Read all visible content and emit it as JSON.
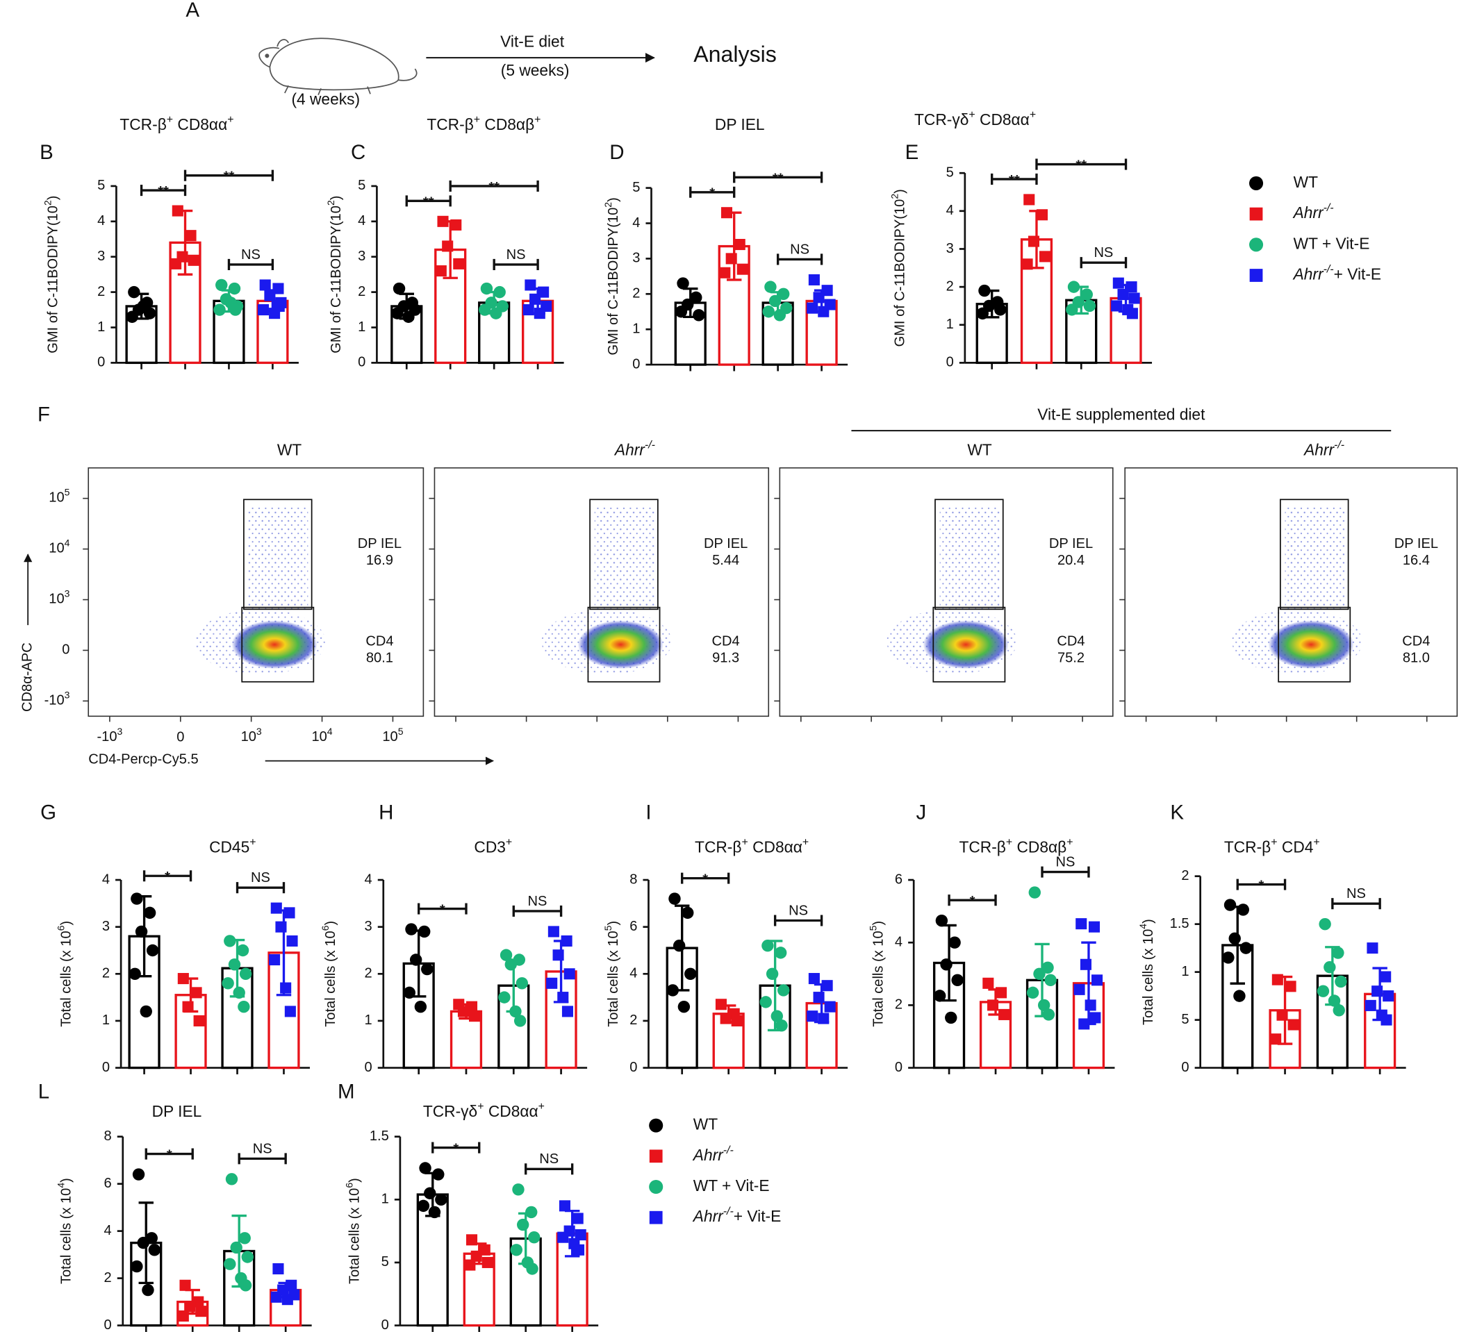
{
  "schematic": {
    "letter": "A",
    "age": "(4 weeks)",
    "diet": "Vit-E diet",
    "duration": "(5 weeks)",
    "outcome": "Analysis"
  },
  "legend": {
    "groups": [
      {
        "label": "WT",
        "color": "#000000",
        "bar_color": "#000000",
        "marker": "circle"
      },
      {
        "label": [
          {
            "t": "Ahrr",
            "i": true
          },
          {
            "t": "-/-",
            "sup": true,
            "i": true
          }
        ],
        "color": "#e8141b",
        "bar_color": "#e8141b",
        "marker": "square"
      },
      {
        "label": "WT + Vit-E",
        "color": "#1bb57a",
        "bar_color": "#000000",
        "marker": "circle"
      },
      {
        "label": [
          {
            "t": "Ahrr",
            "i": true
          },
          {
            "t": "-/-",
            "sup": true,
            "i": true
          },
          {
            "t": "+ Vit-E"
          }
        ],
        "color": "#1a1aee",
        "bar_color": "#e8141b",
        "marker": "square"
      }
    ]
  },
  "flow_group_label": "Vit-E supplemented diet",
  "chart_data": [
    {
      "type": "bar",
      "letter": "B",
      "title": [
        {
          "t": "TCR-β"
        },
        {
          "t": "+",
          "sup": true
        },
        {
          "t": " CD8αα"
        },
        {
          "t": "+",
          "sup": true
        }
      ],
      "ylabel": [
        {
          "t": "GMI of C-11BODIPY(10"
        },
        {
          "t": "2",
          "sup": true
        },
        {
          "t": ")"
        }
      ],
      "ylim": [
        0,
        5
      ],
      "yticks": [
        0,
        1,
        2,
        3,
        4,
        5
      ],
      "means": [
        1.6,
        3.4,
        1.75,
        1.75
      ],
      "errors": [
        0.35,
        0.9,
        0.3,
        0.3
      ],
      "points": [
        [
          2.0,
          1.7,
          1.5,
          1.4,
          1.3,
          1.6
        ],
        [
          4.3,
          3.6,
          3.0,
          2.9,
          2.8
        ],
        [
          2.2,
          2.1,
          1.8,
          1.6,
          1.5,
          1.7,
          1.5
        ],
        [
          2.2,
          2.1,
          1.9,
          1.7,
          1.5,
          1.4,
          1.6
        ]
      ],
      "significance": [
        {
          "label": "**",
          "from": 0,
          "to": 1
        },
        {
          "label": "NS",
          "from": 2,
          "to": 3
        },
        {
          "label": "**",
          "from": 1,
          "to": 3
        }
      ]
    },
    {
      "type": "bar",
      "letter": "C",
      "title": [
        {
          "t": "TCR-β"
        },
        {
          "t": "+",
          "sup": true
        },
        {
          "t": " CD8αβ"
        },
        {
          "t": "+",
          "sup": true
        }
      ],
      "ylabel": [
        {
          "t": "GMI of C-11BODIPY(10"
        },
        {
          "t": "2",
          "sup": true
        },
        {
          "t": ")"
        }
      ],
      "ylim": [
        0,
        5
      ],
      "yticks": [
        0,
        1,
        2,
        3,
        4,
        5
      ],
      "means": [
        1.6,
        3.2,
        1.7,
        1.75
      ],
      "errors": [
        0.35,
        0.8,
        0.3,
        0.35
      ],
      "points": [
        [
          2.1,
          1.7,
          1.6,
          1.5,
          1.4,
          1.3
        ],
        [
          4.0,
          3.9,
          3.3,
          2.8,
          2.6
        ],
        [
          2.1,
          2.0,
          1.7,
          1.6,
          1.5,
          1.4
        ],
        [
          2.2,
          2.0,
          1.8,
          1.6,
          1.5,
          1.4
        ]
      ],
      "significance": [
        {
          "label": "**",
          "from": 0,
          "to": 1
        },
        {
          "label": "NS",
          "from": 2,
          "to": 3
        },
        {
          "label": "**",
          "from": 1,
          "to": 3
        }
      ]
    },
    {
      "type": "bar",
      "letter": "D",
      "title": "DP IEL",
      "ylabel": [
        {
          "t": "GMI of C-11BODIPY(10"
        },
        {
          "t": "2",
          "sup": true
        },
        {
          "t": ")"
        }
      ],
      "ylim": [
        0,
        5
      ],
      "yticks": [
        0,
        1,
        2,
        3,
        4,
        5
      ],
      "means": [
        1.75,
        3.35,
        1.75,
        1.8
      ],
      "errors": [
        0.4,
        0.95,
        0.3,
        0.3
      ],
      "points": [
        [
          2.3,
          1.9,
          1.7,
          1.4,
          1.5
        ],
        [
          4.3,
          3.4,
          3.0,
          2.7,
          2.6
        ],
        [
          2.2,
          2.0,
          1.8,
          1.6,
          1.5,
          1.4
        ],
        [
          2.4,
          2.1,
          1.9,
          1.7,
          1.6,
          1.5
        ]
      ],
      "significance": [
        {
          "label": "*",
          "from": 0,
          "to": 1
        },
        {
          "label": "NS",
          "from": 2,
          "to": 3
        },
        {
          "label": "**",
          "from": 1,
          "to": 3
        }
      ]
    },
    {
      "type": "bar",
      "letter": "E",
      "title": [
        {
          "t": "TCR-γδ"
        },
        {
          "t": "+",
          "sup": true
        },
        {
          "t": " CD8αα"
        },
        {
          "t": "+",
          "sup": true
        }
      ],
      "ylabel": [
        {
          "t": "GMI of C-11BODIPY(10"
        },
        {
          "t": "2",
          "sup": true
        },
        {
          "t": ")"
        }
      ],
      "ylim": [
        0,
        5
      ],
      "yticks": [
        0,
        1,
        2,
        3,
        4,
        5
      ],
      "means": [
        1.55,
        3.25,
        1.65,
        1.7
      ],
      "errors": [
        0.35,
        0.75,
        0.35,
        0.35
      ],
      "points": [
        [
          1.9,
          1.6,
          1.5,
          1.4,
          1.3
        ],
        [
          4.3,
          3.9,
          3.2,
          2.8,
          2.6
        ],
        [
          2.0,
          1.8,
          1.6,
          1.5,
          1.4
        ],
        [
          2.1,
          2.0,
          1.8,
          1.7,
          1.5,
          1.4,
          1.3
        ]
      ],
      "significance": [
        {
          "label": "**",
          "from": 0,
          "to": 1
        },
        {
          "label": "NS",
          "from": 2,
          "to": 3
        },
        {
          "label": "**",
          "from": 1,
          "to": 3
        }
      ]
    },
    {
      "type": "bar",
      "letter": "G",
      "title": [
        {
          "t": "CD45"
        },
        {
          "t": "+",
          "sup": true
        }
      ],
      "ylabel": [
        {
          "t": "Total cells (x 10"
        },
        {
          "t": "6",
          "sup": true
        },
        {
          "t": ")"
        }
      ],
      "ylim": [
        0,
        4
      ],
      "yticks": [
        0,
        1,
        2,
        3,
        4
      ],
      "means": [
        2.8,
        1.55,
        2.12,
        2.45
      ],
      "errors": [
        0.85,
        0.35,
        0.6,
        0.9
      ],
      "points": [
        [
          3.6,
          3.3,
          2.9,
          2.5,
          2.0,
          1.2
        ],
        [
          1.9,
          1.6,
          1.3,
          1.0
        ],
        [
          2.7,
          2.5,
          2.2,
          2.0,
          1.8,
          1.6,
          1.3
        ],
        [
          3.4,
          3.3,
          3.0,
          2.7,
          2.3,
          1.7,
          1.2
        ]
      ],
      "significance": [
        {
          "label": "*",
          "from": 0,
          "to": 1
        },
        {
          "label": "NS",
          "from": 2,
          "to": 3
        }
      ]
    },
    {
      "type": "bar",
      "letter": "H",
      "title": [
        {
          "t": "CD3"
        },
        {
          "t": "+",
          "sup": true
        }
      ],
      "ylabel": [
        {
          "t": "Total cells (x 10"
        },
        {
          "t": "6",
          "sup": true
        },
        {
          "t": ")"
        }
      ],
      "ylim": [
        0,
        4
      ],
      "yticks": [
        0,
        1,
        2,
        3,
        4
      ],
      "means": [
        2.22,
        1.2,
        1.75,
        2.05
      ],
      "errors": [
        0.7,
        0.15,
        0.55,
        0.65
      ],
      "points": [
        [
          2.95,
          2.9,
          2.3,
          2.1,
          1.6,
          1.3
        ],
        [
          1.35,
          1.3,
          1.2,
          1.1
        ],
        [
          2.4,
          2.3,
          2.2,
          1.8,
          1.5,
          1.2,
          1.0
        ],
        [
          2.9,
          2.7,
          2.4,
          2.0,
          1.8,
          1.5,
          1.2
        ]
      ],
      "significance": [
        {
          "label": "*",
          "from": 0,
          "to": 1
        },
        {
          "label": "NS",
          "from": 2,
          "to": 3
        }
      ]
    },
    {
      "type": "bar",
      "letter": "I",
      "title": [
        {
          "t": "TCR-β"
        },
        {
          "t": "+",
          "sup": true
        },
        {
          "t": " CD8αα"
        },
        {
          "t": "+",
          "sup": true
        }
      ],
      "ylabel": [
        {
          "t": "Total cells (x 10"
        },
        {
          "t": "5",
          "sup": true
        },
        {
          "t": ")"
        }
      ],
      "ylim": [
        0,
        8
      ],
      "yticks": [
        0,
        2,
        4,
        6,
        8
      ],
      "means": [
        5.1,
        2.3,
        3.5,
        2.75
      ],
      "errors": [
        1.8,
        0.35,
        1.9,
        0.8
      ],
      "points": [
        [
          7.2,
          6.6,
          5.2,
          4.0,
          3.3,
          2.6
        ],
        [
          2.7,
          2.3,
          2.1,
          2.0
        ],
        [
          5.2,
          4.9,
          4.0,
          3.3,
          2.8,
          2.2,
          1.8
        ],
        [
          3.8,
          3.5,
          3.0,
          2.6,
          2.2,
          2.1
        ]
      ],
      "significance": [
        {
          "label": "*",
          "from": 0,
          "to": 1
        },
        {
          "label": "NS",
          "from": 2,
          "to": 3
        }
      ]
    },
    {
      "type": "bar",
      "letter": "J",
      "title": [
        {
          "t": "TCR-β"
        },
        {
          "t": "+",
          "sup": true
        },
        {
          "t": " CD8αβ"
        },
        {
          "t": "+",
          "sup": true
        }
      ],
      "ylabel": [
        {
          "t": "Total cells (x 10"
        },
        {
          "t": "5",
          "sup": true
        },
        {
          "t": ")"
        }
      ],
      "ylim": [
        0,
        6
      ],
      "yticks": [
        0,
        2,
        4,
        6
      ],
      "means": [
        3.35,
        2.1,
        2.8,
        2.7
      ],
      "errors": [
        1.2,
        0.4,
        1.15,
        1.3
      ],
      "points": [
        [
          4.7,
          4.0,
          3.3,
          2.8,
          2.3,
          1.6
        ],
        [
          2.7,
          2.4,
          2.0,
          1.7
        ],
        [
          5.6,
          3.2,
          3.0,
          2.8,
          2.4,
          2.0,
          1.7
        ],
        [
          4.6,
          4.5,
          3.3,
          2.8,
          2.5,
          2.0,
          1.6,
          1.4
        ]
      ],
      "significance": [
        {
          "label": "*",
          "from": 0,
          "to": 1
        },
        {
          "label": "NS",
          "from": 2,
          "to": 3
        }
      ]
    },
    {
      "type": "bar",
      "letter": "K",
      "title": [
        {
          "t": "TCR-β"
        },
        {
          "t": "+",
          "sup": true
        },
        {
          "t": " CD4"
        },
        {
          "t": "+",
          "sup": true
        }
      ],
      "ylabel": [
        {
          "t": "Total cells (x 10"
        },
        {
          "t": "4",
          "sup": true
        },
        {
          "t": ")"
        }
      ],
      "ylim": [
        0,
        2
      ],
      "yticks": [
        0,
        {
          "value": 0.5,
          "label": "5"
        },
        1,
        1.5,
        2
      ],
      "means": [
        1.28,
        0.6,
        0.96,
        0.77
      ],
      "errors": [
        0.4,
        0.35,
        0.3,
        0.27
      ],
      "points": [
        [
          1.7,
          1.65,
          1.35,
          1.25,
          1.15,
          0.75
        ],
        [
          0.92,
          0.85,
          0.55,
          0.45,
          0.3
        ],
        [
          1.5,
          1.2,
          1.05,
          0.9,
          0.8,
          0.7,
          0.6
        ],
        [
          1.25,
          0.95,
          0.8,
          0.75,
          0.65,
          0.55,
          0.5
        ]
      ],
      "significance": [
        {
          "label": "*",
          "from": 0,
          "to": 1
        },
        {
          "label": "NS",
          "from": 2,
          "to": 3
        }
      ]
    },
    {
      "type": "bar",
      "letter": "L",
      "title": "DP IEL",
      "ylabel": [
        {
          "t": "Total cells (x 10"
        },
        {
          "t": "4",
          "sup": true
        },
        {
          "t": ")"
        }
      ],
      "ylim": [
        0,
        8
      ],
      "yticks": [
        0,
        2,
        4,
        6,
        8
      ],
      "means": [
        3.5,
        1.0,
        3.15,
        1.5
      ],
      "errors": [
        1.7,
        0.5,
        1.5,
        0.3
      ],
      "points": [
        [
          6.4,
          3.7,
          3.5,
          3.2,
          2.5,
          1.5
        ],
        [
          1.7,
          1.0,
          0.8,
          0.6,
          0.4
        ],
        [
          6.2,
          3.7,
          3.3,
          2.9,
          2.6,
          2.0,
          1.7
        ],
        [
          2.4,
          1.7,
          1.5,
          1.3,
          1.2,
          1.1
        ]
      ],
      "significance": [
        {
          "label": "*",
          "from": 0,
          "to": 1
        },
        {
          "label": "NS",
          "from": 2,
          "to": 3
        }
      ]
    },
    {
      "type": "bar",
      "letter": "M",
      "title": [
        {
          "t": "TCR-γδ"
        },
        {
          "t": "+",
          "sup": true
        },
        {
          "t": " CD8αα"
        },
        {
          "t": "+",
          "sup": true
        }
      ],
      "ylabel": [
        {
          "t": "Total cells (x 10"
        },
        {
          "t": "6",
          "sup": true
        },
        {
          "t": ")"
        }
      ],
      "ylim": [
        0,
        1.5
      ],
      "yticks": [
        0,
        {
          "value": 0.5,
          "label": "5"
        },
        1,
        1.5
      ],
      "means": [
        1.04,
        0.57,
        0.69,
        0.73
      ],
      "errors": [
        0.17,
        0.08,
        0.2,
        0.18
      ],
      "points": [
        [
          1.25,
          1.2,
          1.05,
          1.0,
          0.95,
          0.9
        ],
        [
          0.68,
          0.6,
          0.55,
          0.5,
          0.48
        ],
        [
          1.08,
          0.9,
          0.8,
          0.7,
          0.6,
          0.5,
          0.45
        ],
        [
          0.95,
          0.85,
          0.75,
          0.72,
          0.7,
          0.65,
          0.6
        ]
      ],
      "significance": [
        {
          "label": "*",
          "from": 0,
          "to": 1
        },
        {
          "label": "NS",
          "from": 2,
          "to": 3
        }
      ]
    },
    {
      "type": "flow",
      "letter": "F",
      "title": "WT",
      "ylabel": "CD8α-APC",
      "xlabel": "CD4-Percp-Cy5.5",
      "xlim": [
        -2000,
        270000
      ],
      "ylim": [
        -2000,
        400000
      ],
      "xticks": [
        {
          "value": -1000,
          "label": [
            {
              "t": "-10"
            },
            {
              "t": "3",
              "sup": true
            }
          ]
        },
        0,
        {
          "value": 1000,
          "label": [
            {
              "t": "10"
            },
            {
              "t": "3",
              "sup": true
            }
          ]
        },
        {
          "value": 10000,
          "label": [
            {
              "t": "10"
            },
            {
              "t": "4",
              "sup": true
            }
          ]
        },
        {
          "value": 100000,
          "label": [
            {
              "t": "10"
            },
            {
              "t": "5",
              "sup": true
            }
          ]
        }
      ],
      "yticks": [
        {
          "value": -1000,
          "label": [
            {
              "t": "-10"
            },
            {
              "t": "3",
              "sup": true
            }
          ]
        },
        0,
        {
          "value": 1000,
          "label": [
            {
              "t": "10"
            },
            {
              "t": "3",
              "sup": true
            }
          ]
        },
        {
          "value": 10000,
          "label": [
            {
              "t": "10"
            },
            {
              "t": "4",
              "sup": true
            }
          ]
        },
        {
          "value": 100000,
          "label": [
            {
              "t": "10"
            },
            {
              "t": "5",
              "sup": true
            }
          ]
        }
      ],
      "gates": [
        {
          "name": "DP IEL",
          "value": 16.9
        },
        {
          "name": "CD4",
          "value": 80.1
        }
      ]
    },
    {
      "type": "flow",
      "title": [
        {
          "t": "Ahrr",
          "i": true
        },
        {
          "t": "-/-",
          "sup": true,
          "i": true
        }
      ],
      "gates": [
        {
          "name": "DP IEL",
          "value": 5.44
        },
        {
          "name": "CD4",
          "value": 91.3
        }
      ]
    },
    {
      "type": "flow",
      "title": "WT",
      "gates": [
        {
          "name": "DP IEL",
          "value": 20.4
        },
        {
          "name": "CD4",
          "value": 75.2
        }
      ]
    },
    {
      "type": "flow",
      "title": [
        {
          "t": "Ahrr",
          "i": true
        },
        {
          "t": "-/-",
          "sup": true,
          "i": true
        }
      ],
      "gates": [
        {
          "name": "DP IEL",
          "value": 16.4
        },
        {
          "name": "CD4",
          "value": 81,
          "value_label": "81.0"
        }
      ]
    }
  ]
}
